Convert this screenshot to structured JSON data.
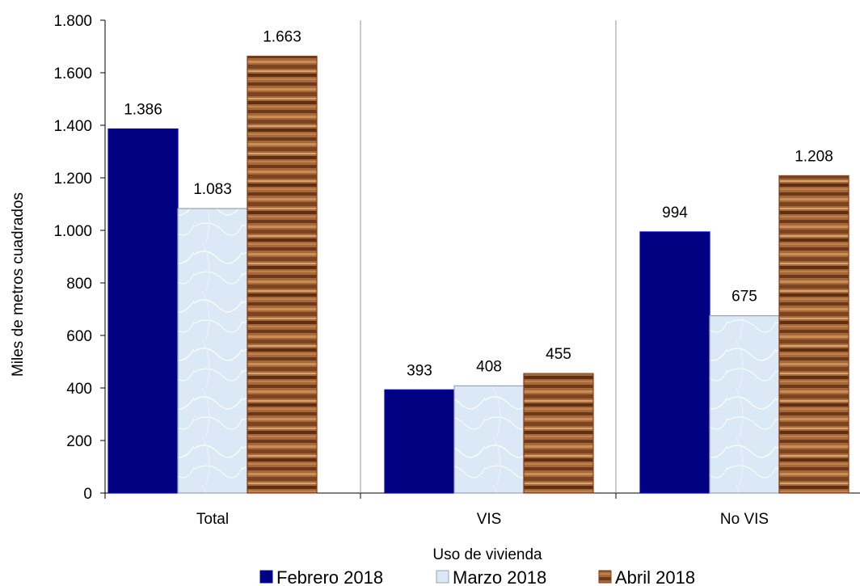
{
  "chart_data": {
    "type": "bar",
    "categories": [
      "Total",
      "VIS",
      "No VIS"
    ],
    "series": [
      {
        "name": "Febrero 2018",
        "values": [
          1386,
          393,
          994
        ],
        "labels": [
          "1.386",
          "393",
          "994"
        ],
        "color": "#000080"
      },
      {
        "name": "Marzo 2018",
        "values": [
          1083,
          408,
          675
        ],
        "labels": [
          "1.083",
          "408",
          "675"
        ],
        "color": "#d6e4f2"
      },
      {
        "name": "Abril 2018",
        "values": [
          1663,
          455,
          1208
        ],
        "labels": [
          "1.663",
          "455",
          "1.208"
        ],
        "color": "#8b5a2b"
      }
    ],
    "xlabel": "Uso de vivienda",
    "ylabel": "Miles de metros cuadrados",
    "ylim": [
      0,
      1800
    ],
    "yticks": [
      0,
      200,
      400,
      600,
      800,
      1000,
      1200,
      1400,
      1600,
      1800
    ],
    "ytick_labels": [
      "0",
      "200",
      "400",
      "600",
      "800",
      "1.000",
      "1.200",
      "1.400",
      "1.600",
      "1.800"
    ],
    "grid": false,
    "category_separators": true,
    "legend_position": "bottom"
  }
}
